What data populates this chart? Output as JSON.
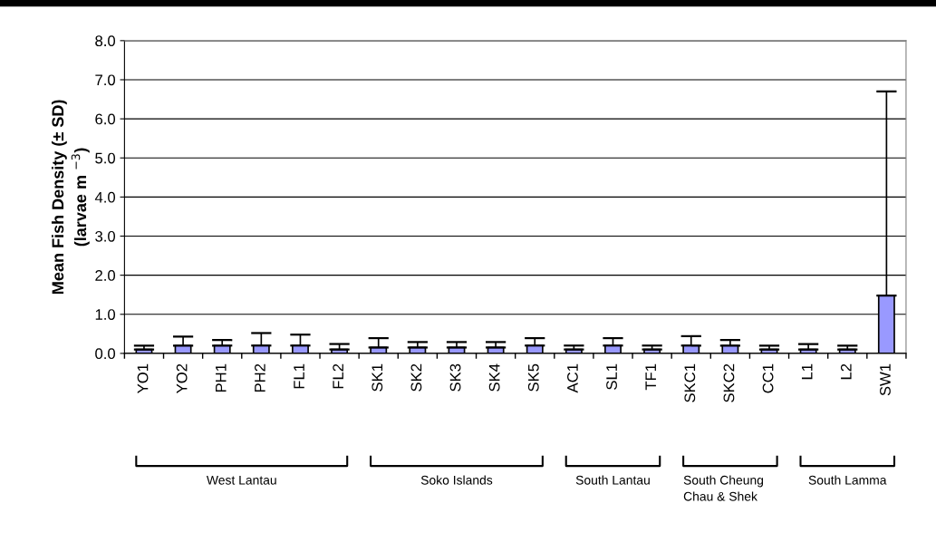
{
  "chart_data": {
    "type": "bar",
    "ylabel": "Mean Fish Density (± SD)\n(larvae m $^{−3}$)",
    "categories": [
      "YO1",
      "YO2",
      "PH1",
      "PH2",
      "FL1",
      "FL2",
      "SK1",
      "SK2",
      "SK3",
      "SK4",
      "SK5",
      "AC1",
      "SL1",
      "TF1",
      "SKC1",
      "SKC2",
      "CC1",
      "L1",
      "L2",
      "SW1"
    ],
    "series": [
      {
        "color": "#9999ff",
        "values": [
          0.1,
          0.2,
          0.2,
          0.2,
          0.2,
          0.1,
          0.15,
          0.15,
          0.15,
          0.15,
          0.2,
          0.1,
          0.2,
          0.1,
          0.2,
          0.2,
          0.1,
          0.1,
          0.1,
          1.48
        ],
        "errors": [
          [
            0.1,
            0.2
          ],
          [
            0.2,
            0.43
          ],
          [
            0.2,
            0.34
          ],
          [
            0.2,
            0.52
          ],
          [
            0.2,
            0.48
          ],
          [
            0.1,
            0.24
          ],
          [
            0.15,
            0.39
          ],
          [
            0.15,
            0.29
          ],
          [
            0.15,
            0.29
          ],
          [
            0.15,
            0.29
          ],
          [
            0.2,
            0.39
          ],
          [
            0.1,
            0.2
          ],
          [
            0.2,
            0.39
          ],
          [
            0.1,
            0.2
          ],
          [
            0.2,
            0.44
          ],
          [
            0.2,
            0.34
          ],
          [
            0.1,
            0.2
          ],
          [
            0.1,
            0.24
          ],
          [
            0.1,
            0.2
          ],
          [
            1.48,
            6.7
          ]
        ]
      }
    ],
    "ylim": [
      0,
      8
    ],
    "yticks": [
      {
        "value": 0,
        "label": "0.0"
      },
      {
        "value": 1,
        "label": "1.0"
      },
      {
        "value": 2,
        "label": "2.0"
      },
      {
        "value": 3,
        "label": "3.0"
      },
      {
        "value": 4,
        "label": "4.0"
      },
      {
        "value": 5,
        "label": "5.0"
      },
      {
        "value": 6,
        "label": "6.0"
      },
      {
        "value": 7,
        "label": "7.0"
      },
      {
        "value": 8,
        "label": "8.0"
      }
    ],
    "grid": "y",
    "annotations": [
      "West Lantau",
      "Soko Islands",
      "South Lantau",
      "South Cheung Chau & Shek",
      "South Lamma"
    ]
  }
}
